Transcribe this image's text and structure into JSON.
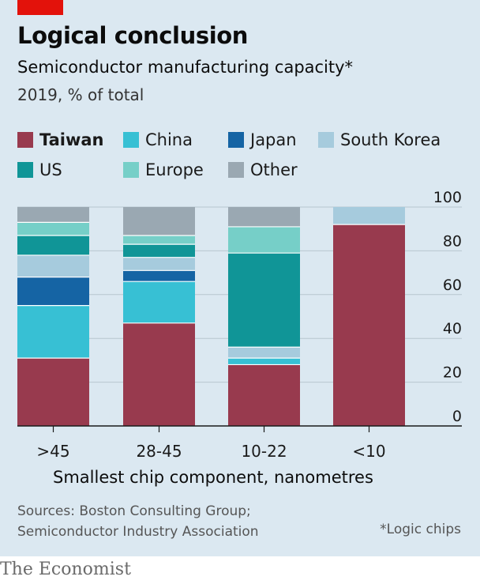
{
  "header": {
    "title": "Logical conclusion",
    "subtitle": "Semiconductor manufacturing capacity*",
    "unit": "2019, % of total"
  },
  "legend": [
    {
      "label": "Taiwan",
      "color": "#983a4e",
      "bold": true
    },
    {
      "label": "China",
      "color": "#37c0d4"
    },
    {
      "label": "Japan",
      "color": "#1564a4"
    },
    {
      "label": "South Korea",
      "color": "#a6cbdd"
    },
    {
      "label": "US",
      "color": "#109597"
    },
    {
      "label": "Europe",
      "color": "#76cfc8"
    },
    {
      "label": "Other",
      "color": "#9aa8b2"
    }
  ],
  "chart_data": {
    "type": "bar",
    "stacked": true,
    "categories": [
      ">45",
      "28-45",
      "10-22",
      "<10"
    ],
    "series": [
      {
        "name": "Taiwan",
        "color": "#983a4e",
        "values": [
          31,
          47,
          28,
          92
        ]
      },
      {
        "name": "China",
        "color": "#37c0d4",
        "values": [
          24,
          19,
          3,
          0
        ]
      },
      {
        "name": "Japan",
        "color": "#1564a4",
        "values": [
          13,
          5,
          0,
          0
        ]
      },
      {
        "name": "South Korea",
        "color": "#a6cbdd",
        "values": [
          10,
          6,
          5,
          8
        ]
      },
      {
        "name": "US",
        "color": "#109597",
        "values": [
          9,
          6,
          43,
          0
        ]
      },
      {
        "name": "Europe",
        "color": "#76cfc8",
        "values": [
          6,
          4,
          12,
          0
        ]
      },
      {
        "name": "Other",
        "color": "#9aa8b2",
        "values": [
          7,
          13,
          9,
          0
        ]
      }
    ],
    "ylim": [
      0,
      100
    ],
    "yticks": [
      0,
      20,
      40,
      60,
      80,
      100
    ],
    "xlabel": "Smallest chip component, nanometres",
    "ylabel": "",
    "grid": true
  },
  "footer": {
    "source_line1": "Sources: Boston Consulting Group;",
    "source_line2": "Semiconductor Industry Association",
    "note": "*Logic chips",
    "brand": "The Economist"
  }
}
